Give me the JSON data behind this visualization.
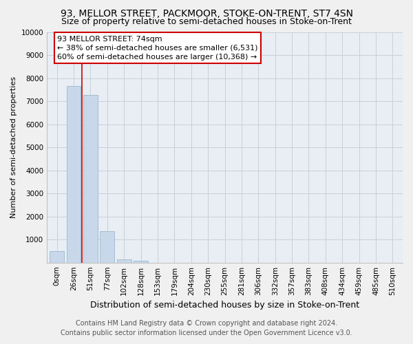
{
  "title": "93, MELLOR STREET, PACKMOOR, STOKE-ON-TRENT, ST7 4SN",
  "subtitle": "Size of property relative to semi-detached houses in Stoke-on-Trent",
  "xlabel": "Distribution of semi-detached houses by size in Stoke-on-Trent",
  "ylabel": "Number of semi-detached properties",
  "footnote1": "Contains HM Land Registry data © Crown copyright and database right 2024.",
  "footnote2": "Contains public sector information licensed under the Open Government Licence v3.0.",
  "bar_labels": [
    "0sqm",
    "26sqm",
    "51sqm",
    "77sqm",
    "102sqm",
    "128sqm",
    "153sqm",
    "179sqm",
    "204sqm",
    "230sqm",
    "255sqm",
    "281sqm",
    "306sqm",
    "332sqm",
    "357sqm",
    "383sqm",
    "408sqm",
    "434sqm",
    "459sqm",
    "485sqm",
    "510sqm"
  ],
  "bar_values": [
    500,
    7650,
    7280,
    1350,
    130,
    90,
    0,
    0,
    0,
    0,
    0,
    0,
    0,
    0,
    0,
    0,
    0,
    0,
    0,
    0,
    0
  ],
  "bar_color": "#c8d8ea",
  "bar_edgecolor": "#99b8cc",
  "annotation_box_color": "#ffffff",
  "annotation_box_edgecolor": "#cc0000",
  "vline_color": "#cc0000",
  "vline_x": 1.5,
  "pct_smaller": 38,
  "n_smaller": 6531,
  "pct_larger": 60,
  "n_larger": 10368,
  "ylim": [
    0,
    10000
  ],
  "yticks": [
    0,
    1000,
    2000,
    3000,
    4000,
    5000,
    6000,
    7000,
    8000,
    9000,
    10000
  ],
  "grid_color": "#c8d0d8",
  "bg_color": "#e8eef4",
  "fig_bg_color": "#f0f0f0",
  "title_fontsize": 10,
  "subtitle_fontsize": 9,
  "xlabel_fontsize": 9,
  "ylabel_fontsize": 8,
  "tick_fontsize": 7.5,
  "annotation_fontsize": 8,
  "footnote_fontsize": 7
}
